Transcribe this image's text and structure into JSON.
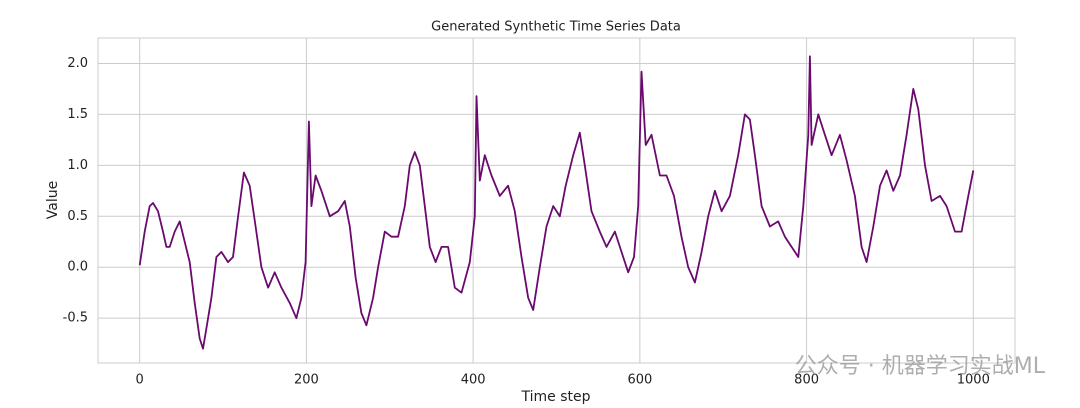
{
  "chart_data": {
    "type": "line",
    "title": "Generated Synthetic Time Series Data",
    "xlabel": "Time step",
    "ylabel": "Value",
    "watermark": "公众号 · 机器学习实战ML",
    "xlim": [
      -50,
      1050
    ],
    "ylim": [
      -0.94,
      2.25
    ],
    "xticks": [
      0,
      200,
      400,
      600,
      800,
      1000
    ],
    "yticks": [
      -0.5,
      {
        "value": 0,
        "label": "0.0"
      },
      0.5,
      {
        "value": 1,
        "label": "1.0"
      },
      1.5,
      {
        "value": 2,
        "label": "2.0"
      }
    ],
    "grid": true,
    "x": [
      0,
      6,
      12,
      16,
      22,
      28,
      32,
      36,
      42,
      48,
      54,
      60,
      66,
      72,
      76,
      80,
      86,
      92,
      98,
      106,
      112,
      118,
      125,
      132,
      139,
      146,
      154,
      162,
      170,
      180,
      188,
      194,
      199,
      203,
      206,
      211,
      218,
      228,
      238,
      246,
      252,
      259,
      266,
      272,
      280,
      286,
      294,
      302,
      310,
      318,
      324,
      330,
      336,
      342,
      348,
      355,
      362,
      370,
      378,
      386,
      396,
      402,
      404,
      408,
      414,
      422,
      432,
      442,
      450,
      458,
      466,
      472,
      480,
      488,
      496,
      504,
      511,
      520,
      528,
      534,
      542,
      552,
      560,
      570,
      578,
      586,
      593,
      598,
      602,
      607,
      614,
      624,
      632,
      641,
      650,
      658,
      666,
      674,
      682,
      690,
      698,
      708,
      718,
      726,
      732,
      738,
      746,
      756,
      766,
      774,
      782,
      790,
      796,
      802,
      804,
      806,
      814,
      822,
      830,
      840,
      848,
      858,
      866,
      872,
      880,
      888,
      896,
      904,
      912,
      920,
      928,
      934,
      942,
      950,
      960,
      968,
      978,
      986,
      994,
      1000
    ],
    "series": [
      {
        "name": "Value",
        "color": "#6a0a6e",
        "values": [
          0.02,
          0.35,
          0.6,
          0.63,
          0.55,
          0.35,
          0.2,
          0.2,
          0.35,
          0.45,
          0.25,
          0.05,
          -0.35,
          -0.7,
          -0.8,
          -0.6,
          -0.3,
          0.1,
          0.15,
          0.05,
          0.1,
          0.5,
          0.93,
          0.8,
          0.4,
          0.0,
          -0.2,
          -0.05,
          -0.2,
          -0.35,
          -0.5,
          -0.3,
          0.05,
          1.43,
          0.6,
          0.9,
          0.75,
          0.5,
          0.55,
          0.65,
          0.4,
          -0.1,
          -0.45,
          -0.57,
          -0.3,
          0.0,
          0.35,
          0.3,
          0.3,
          0.6,
          1.0,
          1.13,
          1.0,
          0.6,
          0.2,
          0.05,
          0.2,
          0.2,
          -0.2,
          -0.25,
          0.05,
          0.5,
          1.68,
          0.85,
          1.1,
          0.9,
          0.7,
          0.8,
          0.55,
          0.1,
          -0.3,
          -0.42,
          0.0,
          0.4,
          0.6,
          0.5,
          0.8,
          1.1,
          1.32,
          1.0,
          0.55,
          0.35,
          0.2,
          0.35,
          0.15,
          -0.05,
          0.1,
          0.6,
          1.92,
          1.2,
          1.3,
          0.9,
          0.9,
          0.7,
          0.3,
          0.0,
          -0.15,
          0.15,
          0.5,
          0.75,
          0.55,
          0.7,
          1.1,
          1.5,
          1.45,
          1.1,
          0.6,
          0.4,
          0.45,
          0.3,
          0.2,
          0.1,
          0.6,
          1.3,
          2.07,
          1.2,
          1.5,
          1.3,
          1.1,
          1.3,
          1.05,
          0.7,
          0.2,
          0.05,
          0.4,
          0.8,
          0.95,
          0.75,
          0.9,
          1.3,
          1.75,
          1.55,
          1.0,
          0.65,
          0.7,
          0.6,
          0.35,
          0.35,
          0.7,
          0.95
        ]
      }
    ]
  }
}
